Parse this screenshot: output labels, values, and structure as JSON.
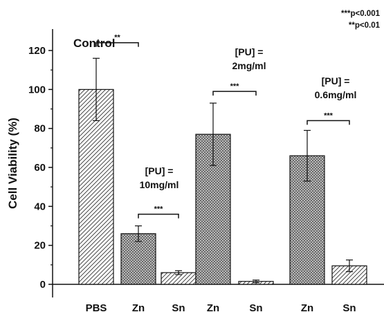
{
  "chart_data": {
    "type": "bar",
    "ylabel": "Cell Viability (%)",
    "ylim": [
      0,
      130
    ],
    "yticks": [
      0,
      20,
      40,
      60,
      80,
      100,
      120
    ],
    "categories": [
      "PBS",
      "Zn",
      "Sn",
      "Zn",
      "Sn",
      "Zn",
      "Sn"
    ],
    "values": [
      100,
      26,
      6,
      77,
      1.5,
      66,
      9.5
    ],
    "errors": [
      16,
      4,
      1,
      16,
      0.7,
      13,
      3
    ],
    "patterns": [
      "diagonal",
      "crosshatch",
      "diagonal",
      "crosshatch",
      "diagonal",
      "crosshatch",
      "diagonal"
    ],
    "annotations": {
      "control": "Control",
      "group1": [
        "[PU] =",
        "10mg/ml"
      ],
      "group2": [
        "[PU] =",
        "2mg/ml"
      ],
      "group3": [
        "[PU] =",
        "0.6mg/ml"
      ]
    },
    "significance": [
      {
        "from": 0,
        "to": 1,
        "label": "**",
        "y": 124
      },
      {
        "from": 1,
        "to": 2,
        "label": "***",
        "y": 36
      },
      {
        "from": 3,
        "to": 4,
        "label": "***",
        "y": 99
      },
      {
        "from": 5,
        "to": 6,
        "label": "***",
        "y": 84
      }
    ],
    "legend": [
      "***p<0.001",
      "**p<0.01"
    ]
  }
}
